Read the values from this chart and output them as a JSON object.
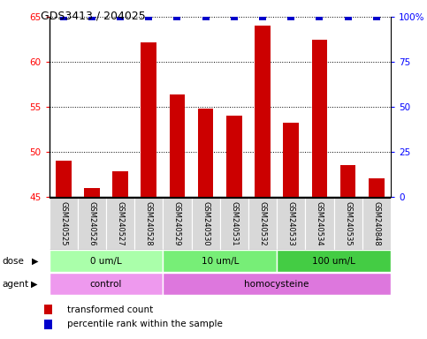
{
  "title": "GDS3413 / 204025",
  "samples": [
    "GSM240525",
    "GSM240526",
    "GSM240527",
    "GSM240528",
    "GSM240529",
    "GSM240530",
    "GSM240531",
    "GSM240532",
    "GSM240533",
    "GSM240534",
    "GSM240535",
    "GSM240848"
  ],
  "bar_values": [
    49.0,
    46.0,
    47.8,
    62.2,
    56.4,
    54.8,
    54.0,
    64.0,
    53.2,
    62.5,
    48.5,
    47.0
  ],
  "percentile_values": [
    100,
    100,
    100,
    100,
    100,
    100,
    100,
    100,
    100,
    100,
    100,
    100
  ],
  "bar_color": "#cc0000",
  "percentile_color": "#0000cc",
  "ylim_left": [
    45,
    65
  ],
  "ylim_right": [
    0,
    100
  ],
  "yticks_left": [
    45,
    50,
    55,
    60,
    65
  ],
  "yticks_right": [
    0,
    25,
    50,
    75,
    100
  ],
  "dose_groups": [
    {
      "label": "0 um/L",
      "start": 0,
      "end": 4,
      "color": "#aaffaa"
    },
    {
      "label": "10 um/L",
      "start": 4,
      "end": 8,
      "color": "#77ee77"
    },
    {
      "label": "100 um/L",
      "start": 8,
      "end": 12,
      "color": "#44cc44"
    }
  ],
  "agent_groups": [
    {
      "label": "control",
      "start": 0,
      "end": 4,
      "color": "#ee99ee"
    },
    {
      "label": "homocysteine",
      "start": 4,
      "end": 12,
      "color": "#dd77dd"
    }
  ],
  "legend_items": [
    {
      "color": "#cc0000",
      "label": "transformed count"
    },
    {
      "color": "#0000cc",
      "label": "percentile rank within the sample"
    }
  ],
  "bar_width": 0.55,
  "dot_size": 28,
  "dot_marker": "s"
}
